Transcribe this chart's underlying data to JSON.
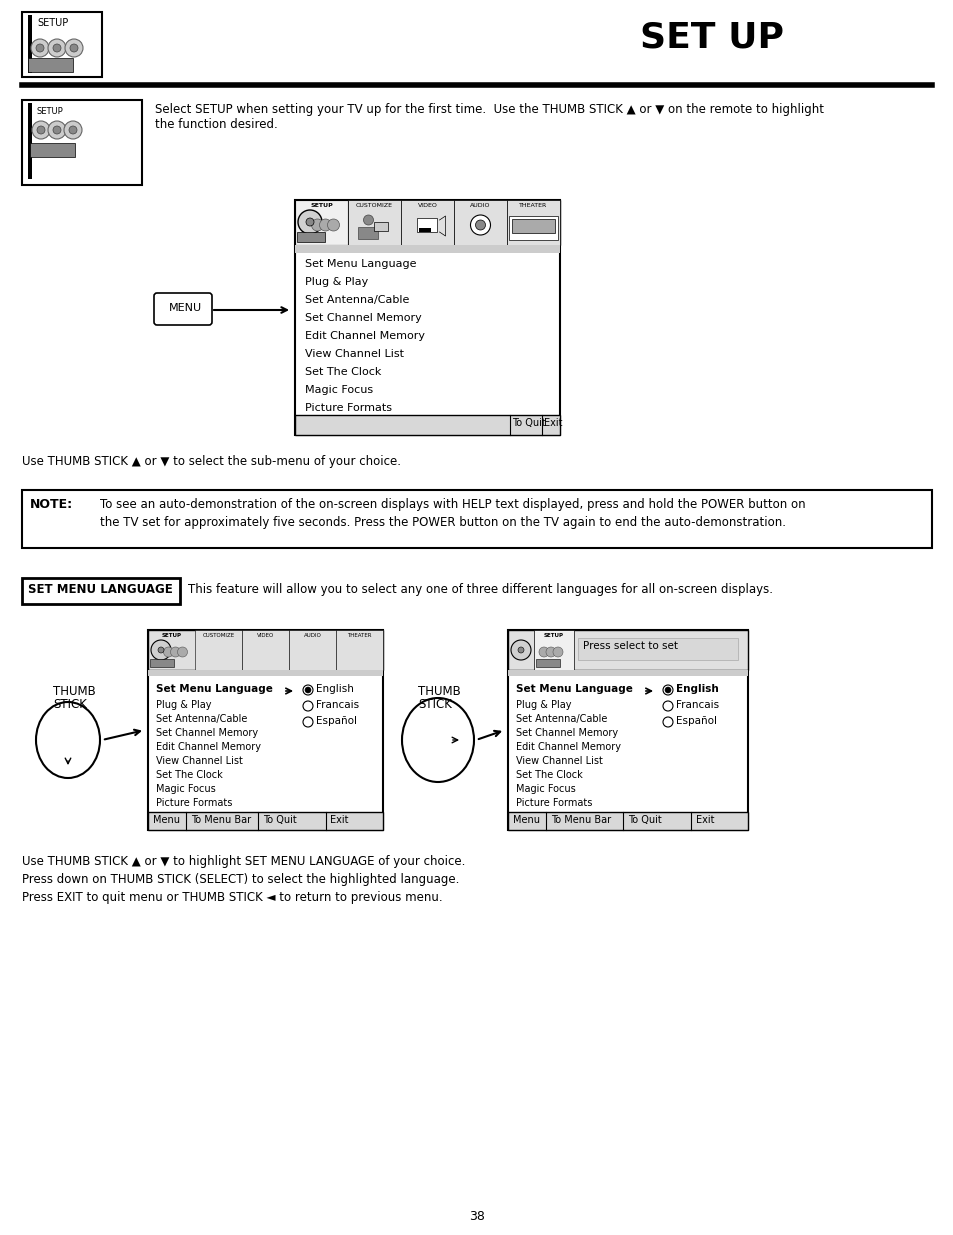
{
  "title": "SET UP",
  "page_number": "38",
  "bg_color": "#ffffff",
  "section1_text_line1": "Select SETUP when setting your TV up for the first time.  Use the THUMB STICK ▲ or ▼ on the remote to highlight",
  "section1_text_line2": "the function desired.",
  "menu_items": [
    "Set Menu Language",
    "Plug & Play",
    "Set Antenna/Cable",
    "Set Channel Memory",
    "Edit Channel Memory",
    "View Channel List",
    "Set The Clock",
    "Magic Focus",
    "Picture Formats"
  ],
  "menu_tabs": [
    "SETUP",
    "CUSTOMIZE",
    "VIDEO",
    "AUDIO",
    "THEATER"
  ],
  "thumb_text": "Use THUMB STICK ▲ or ▼ to select the sub-menu of your choice.",
  "note_label": "NOTE:",
  "note_text_line1": "To see an auto-demonstration of the on-screen displays with HELP text displayed, press and hold the POWER button on",
  "note_text_line2": "the TV set for approximately five seconds. Press the POWER button on the TV again to end the auto-demonstration.",
  "set_menu_label": "SET MENU LANGUAGE",
  "set_menu_desc": "This feature will allow you to select any one of three different languages for all on-screen displays.",
  "languages": [
    "English",
    "Francais",
    "Español"
  ],
  "thumb_label1_line1": "THUMB",
  "thumb_label1_line2": "STICK",
  "thumb_label2_line1": "THUMB",
  "thumb_label2_line2": "STICK",
  "bottom_text_line1": "Use THUMB STICK ▲ or ▼ to highlight SET MENU LANGUAGE of your choice.",
  "bottom_text_line2": "Press down on THUMB STICK (SELECT) to select the highlighted language.",
  "bottom_text_line3": "Press EXIT to quit menu or THUMB STICK ◄ to return to previous menu.",
  "press_select_text": "Press select to set"
}
